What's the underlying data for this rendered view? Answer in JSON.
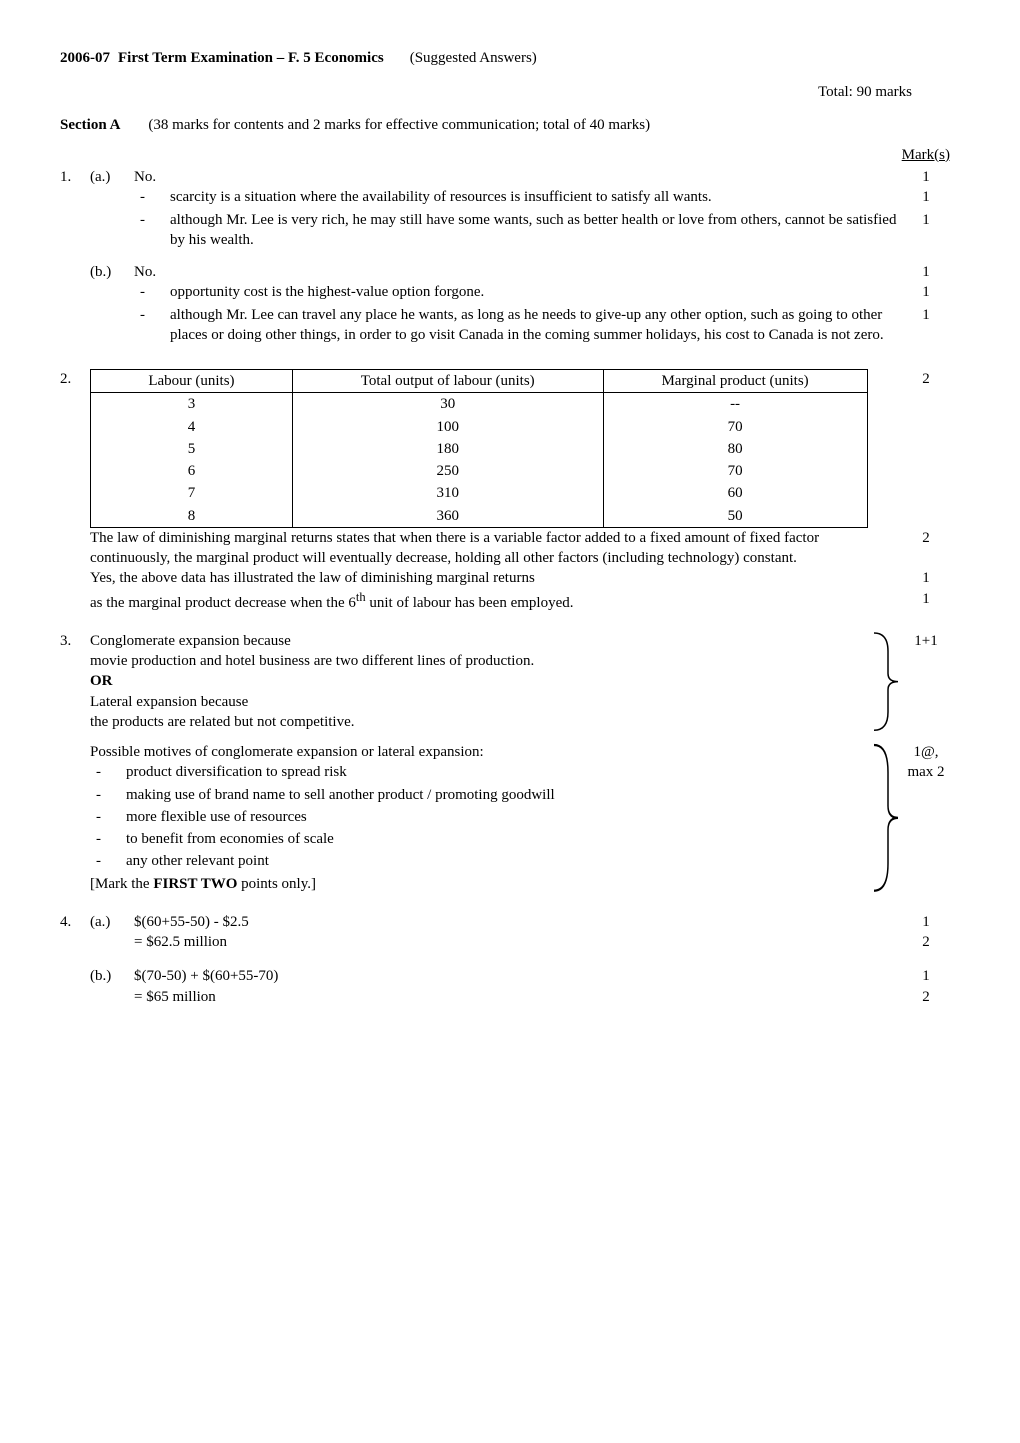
{
  "header": {
    "year": "2006-07",
    "title": "First Term Examination – F. 5 Economics",
    "suffix": "(Suggested Answers)",
    "total": "Total:  90 marks"
  },
  "sectionA": {
    "label": "Section A",
    "note": "(38 marks for contents and 2 marks for effective communication; total of 40 marks)"
  },
  "marks_header": "Mark(s)",
  "q1": {
    "num": "1.",
    "a_lbl": "(a.)",
    "a_no": "No.",
    "a_no_mark": "1",
    "a_d1": "scarcity is a situation where the availability of resources is insufficient to satisfy all wants.",
    "a_d1_mark": "1",
    "a_d2": "although Mr. Lee is very rich, he may still have some wants, such as better health or love from others, cannot be satisfied by his wealth.",
    "a_d2_mark": "1",
    "b_lbl": "(b.)",
    "b_no": "No.",
    "b_no_mark": "1",
    "b_d1": "opportunity cost is the highest-value option forgone.",
    "b_d1_mark": "1",
    "b_d2": "although Mr. Lee can travel any place he wants, as long as he needs to give-up any other option, such as going to other places or doing other things, in order to go visit Canada in the coming summer holidays, his cost to Canada is not zero.",
    "b_d2_mark": "1"
  },
  "q2": {
    "num": "2.",
    "table": {
      "headers": [
        "Labour (units)",
        "Total output of labour (units)",
        "Marginal product (units)"
      ],
      "col_widths": [
        "26%",
        "40%",
        "34%"
      ],
      "rows": [
        [
          "3",
          "30",
          "--"
        ],
        [
          "4",
          "100",
          "70"
        ],
        [
          "5",
          "180",
          "80"
        ],
        [
          "6",
          "250",
          "70"
        ],
        [
          "7",
          "310",
          "60"
        ],
        [
          "8",
          "360",
          "50"
        ]
      ]
    },
    "table_mark": "2",
    "p1": "The law of diminishing marginal returns states that when there is a variable factor added to a fixed amount of fixed factor continuously, the marginal product will eventually decrease, holding all other factors (including technology) constant.",
    "p1_mark": "2",
    "p2": "Yes, the above data has illustrated the law of diminishing marginal returns",
    "p2_mark": "1",
    "p3": "as the marginal product decrease when the 6",
    "p3_sup": "th",
    "p3_after": " unit of labour has been employed.",
    "p3_mark": "1"
  },
  "q3": {
    "num": "3.",
    "l1": "Conglomerate expansion because",
    "l2": "movie production and hotel business are two different lines of production.",
    "or": "OR",
    "l3": "Lateral expansion because",
    "l4": "the products are related but not competitive.",
    "or_mark": "1+1",
    "motives_intro": "Possible motives of conglomerate expansion or lateral expansion:",
    "motives": [
      "product diversification to spread risk",
      "making use of brand name to sell another product / promoting goodwill",
      "more flexible use of resources",
      "to benefit from economies of scale",
      "any other relevant point"
    ],
    "motives_note": "[Mark the ",
    "motives_note_bold": "FIRST TWO",
    "motives_note_after": " points only.]",
    "motives_mark1": "1@,",
    "motives_mark2": "max 2"
  },
  "q4": {
    "num": "4.",
    "a_lbl": "(a.)",
    "a_l1": "$(60+55-50) - $2.5",
    "a_l2": "= $62.5 million",
    "a_m1": "1",
    "a_m2": "2",
    "b_lbl": "(b.)",
    "b_l1": "$(70-50) + $(60+55-70)",
    "b_l2": "= $65 million",
    "b_m1": "1",
    "b_m2": "2"
  },
  "brace_color": "#000000"
}
